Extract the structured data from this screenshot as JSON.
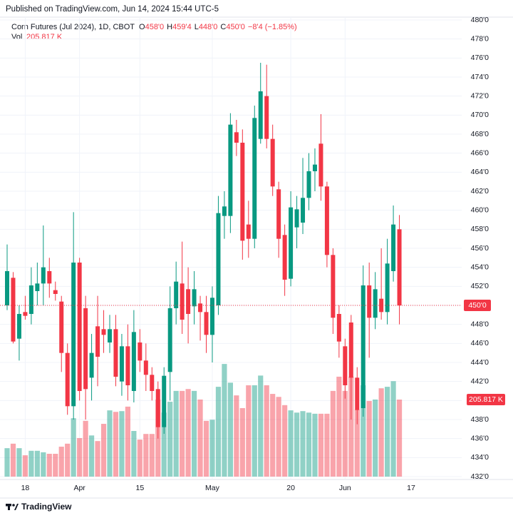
{
  "published": "Published on TradingView.com, Jun 14, 2024 15:44 UTC-5",
  "footer": "TradingView",
  "chart_data": {
    "type": "candlestick",
    "title": "Corn Futures (Jul 2024), 1D, CBOT",
    "ohlc_legend": [
      {
        "key": "O",
        "value": "458'0"
      },
      {
        "key": "H",
        "value": "459'4"
      },
      {
        "key": "L",
        "value": "448'0"
      },
      {
        "key": "C",
        "value": "450'0"
      }
    ],
    "change": "−8'4 (−1.85%)",
    "volume_name": "Vol",
    "volume_label": "205.817 K",
    "up_color": "#089981",
    "down_color": "#f23645",
    "categories": [
      null,
      null,
      null,
      "18",
      null,
      null,
      null,
      null,
      null,
      null,
      null,
      null,
      "Apr",
      null,
      null,
      null,
      null,
      null,
      null,
      null,
      null,
      null,
      "15",
      null,
      null,
      null,
      null,
      null,
      null,
      null,
      null,
      null,
      null,
      null,
      "May",
      null,
      null,
      null,
      null,
      null,
      null,
      null,
      null,
      null,
      null,
      null,
      null,
      "20",
      null,
      null,
      null,
      null,
      null,
      null,
      null,
      null,
      "Jun",
      null,
      null,
      null,
      null,
      null,
      null,
      null,
      null,
      null
    ],
    "next_category": "17",
    "open": [
      450,
      452.9,
      446.5,
      449.3,
      449.1,
      451.5,
      452.3,
      453.6,
      451.6,
      450.4,
      445,
      439.4,
      454.5,
      449.7,
      442.4,
      447.8,
      447.5,
      446.1,
      447.5,
      442,
      445.7,
      441,
      446.1,
      444.2,
      442.7,
      441.2,
      437.2,
      443,
      449.7,
      452.3,
      451.7,
      449.9,
      450.2,
      449.3,
      446.9,
      450,
      459.4,
      459.4,
      468.2,
      467.1,
      458.5,
      457,
      467.5,
      472,
      467.5,
      462.2,
      457.4,
      452.8,
      458.2,
      458.7,
      461.3,
      464.1,
      467,
      462.5,
      455.3,
      449.1,
      445.7,
      448.2,
      442.4,
      439.2,
      452.1,
      448.7,
      450.7,
      449.3,
      453.6,
      458
    ],
    "high": [
      456.4,
      453.5,
      450,
      451,
      454,
      454.5,
      458.4,
      455,
      452.5,
      451,
      446,
      459.8,
      455,
      451,
      447,
      451,
      449.5,
      449,
      449,
      447,
      448,
      449.5,
      447.5,
      446,
      443.5,
      442,
      443.5,
      452,
      454.6,
      456.7,
      454,
      453.6,
      451,
      451,
      452,
      461.5,
      462,
      470.2,
      469.5,
      468.5,
      461,
      471,
      475.5,
      475.3,
      469,
      463,
      458.5,
      462,
      461.5,
      465.5,
      466,
      466.5,
      470.1,
      463,
      456,
      450,
      446.5,
      449,
      443.5,
      454.2,
      454.5,
      453.5,
      456,
      457,
      460.5,
      459.5
    ],
    "low": [
      449.5,
      446,
      444.2,
      448.5,
      448,
      450,
      450,
      450.8,
      450.5,
      443,
      438.5,
      438,
      440,
      438,
      440,
      441.5,
      445,
      445,
      441.5,
      440.5,
      440,
      439.8,
      443,
      441,
      440,
      436,
      436.5,
      440,
      448,
      447,
      446,
      448,
      446.3,
      445,
      444,
      449,
      457,
      457.6,
      465.7,
      454.8,
      455,
      456,
      467,
      466.5,
      461.5,
      455,
      451,
      452,
      456,
      457.5,
      460,
      462,
      461,
      454,
      447,
      444.5,
      440.2,
      438,
      437.5,
      438.3,
      444.5,
      447.5,
      448.5,
      448,
      452.5,
      448
    ],
    "close": [
      453.6,
      446.2,
      449.1,
      448.9,
      452.1,
      452.3,
      454,
      452.3,
      451.2,
      445,
      439.4,
      454.5,
      441,
      441.2,
      445,
      444.6,
      446.9,
      447.5,
      442.5,
      445.7,
      441.6,
      447.2,
      444.2,
      442.7,
      441,
      437.2,
      442.6,
      449.7,
      452.5,
      448.5,
      449.1,
      451.7,
      449.3,
      446.9,
      450.8,
      459.7,
      460.4,
      469,
      467.1,
      456.8,
      457,
      469.7,
      472.5,
      467.5,
      462.5,
      457,
      452.7,
      460.3,
      460.1,
      461.3,
      464.1,
      464.8,
      462.5,
      455.3,
      448.7,
      446.2,
      441.6,
      442.4,
      439,
      452.1,
      448.7,
      451.7,
      449.3,
      454.4,
      458.5,
      450
    ],
    "volume": [
      76,
      88,
      76,
      57,
      69,
      69,
      65,
      61,
      61,
      80,
      88,
      156,
      103,
      149,
      110,
      95,
      141,
      177,
      173,
      175,
      187,
      122,
      99,
      114,
      114,
      206,
      171,
      200,
      229,
      229,
      234,
      229,
      206,
      149,
      152,
      240,
      301,
      251,
      217,
      183,
      244,
      244,
      270,
      244,
      221,
      213,
      191,
      177,
      171,
      175,
      171,
      168,
      168,
      168,
      229,
      267,
      229,
      267,
      179,
      244,
      202,
      206,
      236,
      240,
      255,
      205.817
    ],
    "vol_ylim": [
      0,
      1220
    ],
    "last_price": 450,
    "last_price_label": "450'0",
    "ylim": [
      432,
      480
    ],
    "yticks": [
      {
        "value": 432,
        "label": "432'0"
      },
      {
        "value": 434,
        "label": "434'0"
      },
      {
        "value": 436,
        "label": "436'0"
      },
      {
        "value": 438,
        "label": "438'0"
      },
      {
        "value": 440,
        "label": "440'0"
      },
      {
        "value": 442,
        "label": "442'0"
      },
      {
        "value": 444,
        "label": "444'0"
      },
      {
        "value": 446,
        "label": "446'0"
      },
      {
        "value": 448,
        "label": "448'0"
      },
      {
        "value": 450,
        "label": "450'0"
      },
      {
        "value": 452,
        "label": "452'0"
      },
      {
        "value": 454,
        "label": "454'0"
      },
      {
        "value": 456,
        "label": "456'0"
      },
      {
        "value": 458,
        "label": "458'0"
      },
      {
        "value": 460,
        "label": "460'0"
      },
      {
        "value": 462,
        "label": "462'0"
      },
      {
        "value": 464,
        "label": "464'0"
      },
      {
        "value": 466,
        "label": "466'0"
      },
      {
        "value": 468,
        "label": "468'0"
      },
      {
        "value": 470,
        "label": "470'0"
      },
      {
        "value": 472,
        "label": "472'0"
      },
      {
        "value": 474,
        "label": "474'0"
      },
      {
        "value": 476,
        "label": "476'0"
      },
      {
        "value": 478,
        "label": "478'0"
      },
      {
        "value": 480,
        "label": "480'0"
      }
    ],
    "grid": true
  }
}
